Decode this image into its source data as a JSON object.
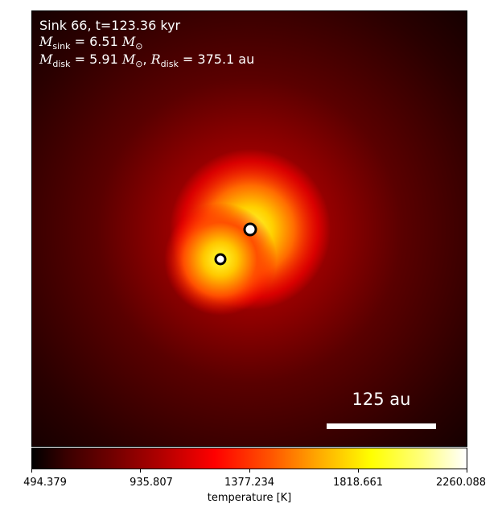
{
  "annotation": {
    "line1": "Sink 66, t=123.36 kyr",
    "msink_value": "= 6.51",
    "mdisk_value": "= 5.91",
    "rdisk_value": "= 375.1",
    "unit_msun": "M",
    "unit_au": "au",
    "sym_m": "M",
    "sym_r": "R",
    "sub_sink": "sink",
    "sub_disk": "disk",
    "sub_sun": "⊙"
  },
  "scale_bar": {
    "label": "125 au"
  },
  "colorbar": {
    "label": "temperature [K]",
    "ticks": [
      "494.379",
      "935.807",
      "1377.234",
      "1818.661",
      "2260.088"
    ],
    "min": 494.379,
    "max": 2260.088
  },
  "colors": {
    "hot": "#ffff00",
    "mid": "#ff0000",
    "cold": "#1a0000",
    "marker": "#000000"
  }
}
